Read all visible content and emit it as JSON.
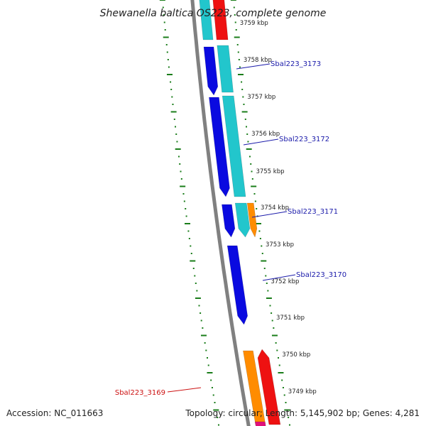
{
  "title": "Shewanella baltica OS223, complete genome",
  "accession": "Accession: NC_011663",
  "summary": "Topology: circular; Length: 5,145,902 bp; Genes: 4,281",
  "colors": {
    "backbone": "#808080",
    "tick": "#1a7d1a",
    "gene_blue": "#0a0ae0",
    "gene_cyan": "#22c6cc",
    "gene_red": "#ee1111",
    "gene_orange": "#ff8c00",
    "gene_magenta": "#e0117a",
    "label_blue": "#1a1aaa",
    "label_red": "#cc1111"
  },
  "scale": {
    "labels": [
      "3759 kbp",
      "3758 kbp",
      "3757 kbp",
      "3756 kbp",
      "3755 kbp",
      "3754 kbp",
      "3753 kbp",
      "3752 kbp",
      "3751 kbp",
      "3750 kbp",
      "3749 kbp"
    ]
  },
  "gene_labels": [
    {
      "text": "Sbal223_3173",
      "color": "label_blue"
    },
    {
      "text": "Sbal223_3172",
      "color": "label_blue"
    },
    {
      "text": "Sbal223_3171",
      "color": "label_blue"
    },
    {
      "text": "Sbal223_3170",
      "color": "label_blue"
    },
    {
      "text": "Sbal223_3169",
      "color": "label_red"
    }
  ],
  "features": [
    {
      "track": 0,
      "color": "gene_cyan",
      "dir": "none"
    },
    {
      "track": 1,
      "color": "gene_red",
      "dir": "none"
    },
    {
      "track": 0,
      "color": "gene_blue",
      "dir": "down"
    },
    {
      "track": 1,
      "color": "gene_cyan",
      "dir": "none"
    },
    {
      "track": 0,
      "color": "gene_blue",
      "dir": "down"
    },
    {
      "track": 1,
      "color": "gene_cyan",
      "dir": "none"
    },
    {
      "track": 0,
      "color": "gene_blue",
      "dir": "down"
    },
    {
      "track": 1,
      "color": "gene_cyan",
      "dir": "down"
    },
    {
      "track": 2,
      "color": "gene_orange",
      "dir": "down"
    },
    {
      "track": 0,
      "color": "gene_blue",
      "dir": "down"
    },
    {
      "track": 0,
      "color": "gene_orange",
      "dir": "none"
    },
    {
      "track": 1,
      "color": "gene_red",
      "dir": "up"
    },
    {
      "track": 0,
      "color": "gene_magenta",
      "dir": "none"
    }
  ]
}
